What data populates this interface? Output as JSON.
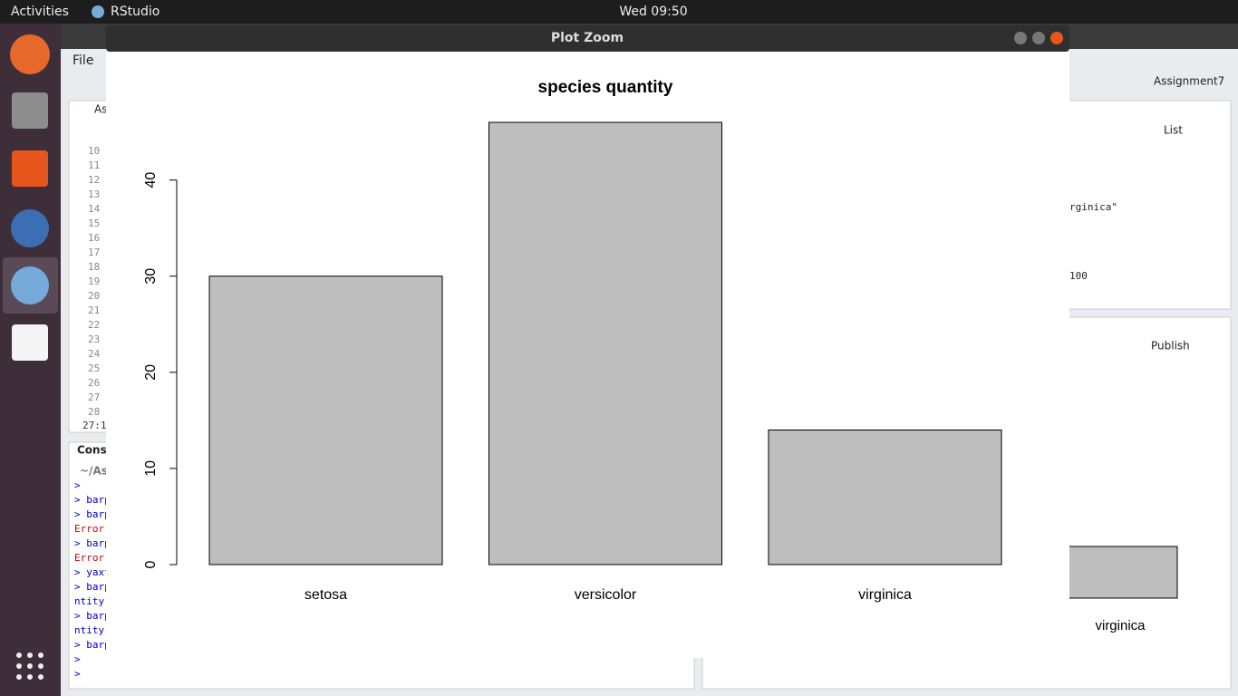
{
  "topbar": {
    "activities": "Activities",
    "app": "RStudio",
    "clock": "Wed 09:50"
  },
  "rstudio": {
    "menu": "File",
    "project": "Assignment7",
    "source_tab": "As",
    "line_numbers": [
      "10",
      "11",
      "12",
      "13",
      "14",
      "15",
      "16",
      "17",
      "18",
      "19",
      "20",
      "21",
      "22",
      "23",
      "24",
      "25",
      "26",
      "27",
      "28"
    ],
    "cursor": "27:1",
    "console_tab": "Conso",
    "console_path": "~/As",
    "console_lines": [
      ">",
      "> barp",
      "> barp",
      "Error",
      "> barp",
      "Error",
      "> yaxt",
      "> barp",
      "ntity",
      "> barp",
      "ntity",
      "> barp",
      ">",
      ">"
    ],
    "env_view": "List",
    "env_rows": [
      "rginica\"",
      "100"
    ],
    "publish": "Publish",
    "bg_plot_label": "virginica"
  },
  "window": {
    "title": "Plot Zoom"
  },
  "chart_data": {
    "type": "bar",
    "title": "species quantity",
    "categories": [
      "setosa",
      "versicolor",
      "virginica"
    ],
    "values": [
      30,
      46,
      14
    ],
    "color": "#bebebe",
    "ylim": [
      0,
      46
    ],
    "yticks": [
      0,
      10,
      20,
      30,
      40
    ]
  }
}
